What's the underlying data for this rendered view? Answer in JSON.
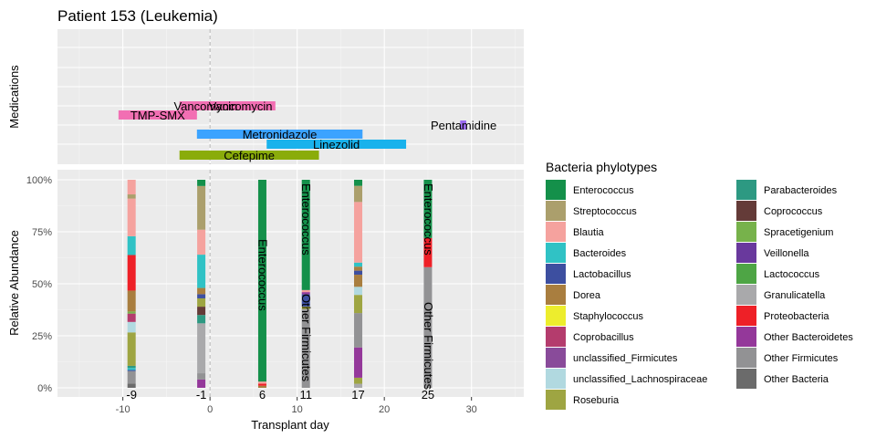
{
  "title": "Patient 153 (Leukemia)",
  "chart_data": [
    {
      "type": "timeline",
      "panel": "medications",
      "ylabel": "Medications",
      "xlim": [
        -17.5,
        36
      ],
      "grid": true,
      "transplant_line_x": 0,
      "drugs": [
        {
          "name": "Vancomycin",
          "start": -3.5,
          "end": 1.5,
          "row": 0,
          "color": "#f26fb3",
          "label_x": -0.5
        },
        {
          "name": "Vancomycin",
          "start": 1.5,
          "end": 7.5,
          "row": 0,
          "color": "#f26fb3",
          "label_x": 3.5
        },
        {
          "name": "TMP-SMX",
          "start": -10.5,
          "end": -1.5,
          "row": 1,
          "color": "#f26fb3",
          "label_x": -6
        },
        {
          "name": "Pentamidine",
          "start": 28.7,
          "end": 29.4,
          "row": 2,
          "color": "#9a6af0",
          "label_x": 29.1
        },
        {
          "name": "Metronidazole",
          "start": -1.5,
          "end": 17.5,
          "row": 3,
          "color": "#3ba3ff",
          "label_x": 8
        },
        {
          "name": "Linezolid",
          "start": 6.5,
          "end": 22.5,
          "row": 4,
          "color": "#19b2ec",
          "label_x": 14.5
        },
        {
          "name": "Cefepime",
          "start": -3.5,
          "end": 12.5,
          "row": 5,
          "color": "#8aac0a",
          "label_x": 4.5
        }
      ]
    },
    {
      "type": "bar",
      "stacked": true,
      "xlabel": "Transplant day",
      "ylabel": "Relative Abundance",
      "xlim": [
        -17.5,
        36
      ],
      "x_ticks": [
        -10,
        0,
        10,
        20,
        30
      ],
      "y_ticks": [
        "0%",
        "25%",
        "50%",
        "75%",
        "100%"
      ],
      "ylim": [
        0,
        1
      ],
      "categories": [
        "-9",
        "-1",
        "6",
        "11",
        "17",
        "25"
      ],
      "x": [
        -9,
        -1,
        6,
        11,
        17,
        25
      ],
      "samples": [
        {
          "day": -9,
          "label": "-9",
          "segments": [
            [
              "Other Bacteria",
              0.02
            ],
            [
              "Other Firmicutes",
              0.06
            ],
            [
              "Lactobacillus",
              0.005
            ],
            [
              "Bacteroides",
              0.01
            ],
            [
              "Parabacteroides",
              0.01
            ],
            [
              "Roseburia",
              0.16
            ],
            [
              "unclassified_Lachnospiraceae",
              0.05
            ],
            [
              "Coprobacillus",
              0.04
            ],
            [
              "Spracetigenium",
              0.01
            ],
            [
              "Dorea",
              0.1
            ],
            [
              "Proteobacteria",
              0.17
            ],
            [
              "Bacteroides",
              0.09
            ],
            [
              "Blautia",
              0.18
            ],
            [
              "Streptococcus",
              0.02
            ],
            [
              "Blautia",
              0.07
            ]
          ]
        },
        {
          "day": -1,
          "label": "-1",
          "segments": [
            [
              "Other Bacteroidetes",
              0.04
            ],
            [
              "Other Firmicutes",
              0.03
            ],
            [
              "Granulicatella",
              0.24
            ],
            [
              "Parabacteroides",
              0.04
            ],
            [
              "Coprococcus",
              0.04
            ],
            [
              "Roseburia",
              0.04
            ],
            [
              "Lactobacillus",
              0.02
            ],
            [
              "Dorea",
              0.03
            ],
            [
              "Bacteroides",
              0.16
            ],
            [
              "Blautia",
              0.12
            ],
            [
              "Streptococcus",
              0.21
            ],
            [
              "Enterococcus",
              0.03
            ]
          ]
        },
        {
          "day": 6,
          "label": "6",
          "label_text": "Enterococcus",
          "segments": [
            [
              "Dorea",
              0.01
            ],
            [
              "Proteobacteria",
              0.01
            ],
            [
              "Blautia",
              0.01
            ],
            [
              "Enterococcus",
              0.97
            ]
          ]
        },
        {
          "day": 11,
          "label": "11",
          "label_text": "Enterococcus",
          "label_text2": "Other Firmicutes",
          "segments": [
            [
              "Other Firmicutes",
              0.38
            ],
            [
              "Staphylococcus",
              0.01
            ],
            [
              "Lactobacillus",
              0.06
            ],
            [
              "Other Bacteroidetes",
              0.01
            ],
            [
              "Blautia",
              0.01
            ],
            [
              "Enterococcus",
              0.53
            ]
          ]
        },
        {
          "day": 17,
          "label": "17",
          "segments": [
            [
              "Granulicatella",
              0.02
            ],
            [
              "Roseburia",
              0.03
            ],
            [
              "Other Bacteroidetes",
              0.15
            ],
            [
              "Other Firmicutes",
              0.17
            ],
            [
              "Roseburia",
              0.09
            ],
            [
              "unclassified_Lachnospiraceae",
              0.04
            ],
            [
              "Dorea",
              0.06
            ],
            [
              "Lactobacillus",
              0.02
            ],
            [
              "Dorea",
              0.02
            ],
            [
              "Bacteroides",
              0.02
            ],
            [
              "Blautia",
              0.3
            ],
            [
              "Streptococcus",
              0.08
            ],
            [
              "Enterococcus",
              0.03
            ]
          ]
        },
        {
          "day": 25,
          "label": "25",
          "label_text": "Enterococcus",
          "label_text2": "Other Firmicutes",
          "segments": [
            [
              "Other Firmicutes",
              0.58
            ],
            [
              "Proteobacteria",
              0.14
            ],
            [
              "Enterococcus",
              0.28
            ]
          ]
        }
      ],
      "legend": {
        "title": "Bacteria phylotypes",
        "placement": "right",
        "items": [
          {
            "name": "Enterococcus",
            "color": "#14904a"
          },
          {
            "name": "Streptococcus",
            "color": "#ab9f6c"
          },
          {
            "name": "Blautia",
            "color": "#f5a29e"
          },
          {
            "name": "Bacteroides",
            "color": "#30c2c5"
          },
          {
            "name": "Lactobacillus",
            "color": "#3d4fa0"
          },
          {
            "name": "Dorea",
            "color": "#a97e3f"
          },
          {
            "name": "Staphylococcus",
            "color": "#eded2d"
          },
          {
            "name": "Coprobacillus",
            "color": "#b43c6d"
          },
          {
            "name": "unclassified_Firmicutes",
            "color": "#894b9a"
          },
          {
            "name": "unclassified_Lachnospiraceae",
            "color": "#b1d9e0"
          },
          {
            "name": "Roseburia",
            "color": "#9ea542"
          },
          {
            "name": "Parabacteroides",
            "color": "#2d9982"
          },
          {
            "name": "Coprococcus",
            "color": "#643b38"
          },
          {
            "name": "Spracetigenium",
            "color": "#77b24b"
          },
          {
            "name": "Veillonella",
            "color": "#69399d"
          },
          {
            "name": "Lactococcus",
            "color": "#4ea545"
          },
          {
            "name": "Granulicatella",
            "color": "#a9a9ab"
          },
          {
            "name": "Proteobacteria",
            "color": "#ee2027"
          },
          {
            "name": "Other Bacteroidetes",
            "color": "#94389a"
          },
          {
            "name": "Other Firmicutes",
            "color": "#929294"
          },
          {
            "name": "Other Bacteria",
            "color": "#6b6b6b"
          }
        ]
      }
    }
  ]
}
